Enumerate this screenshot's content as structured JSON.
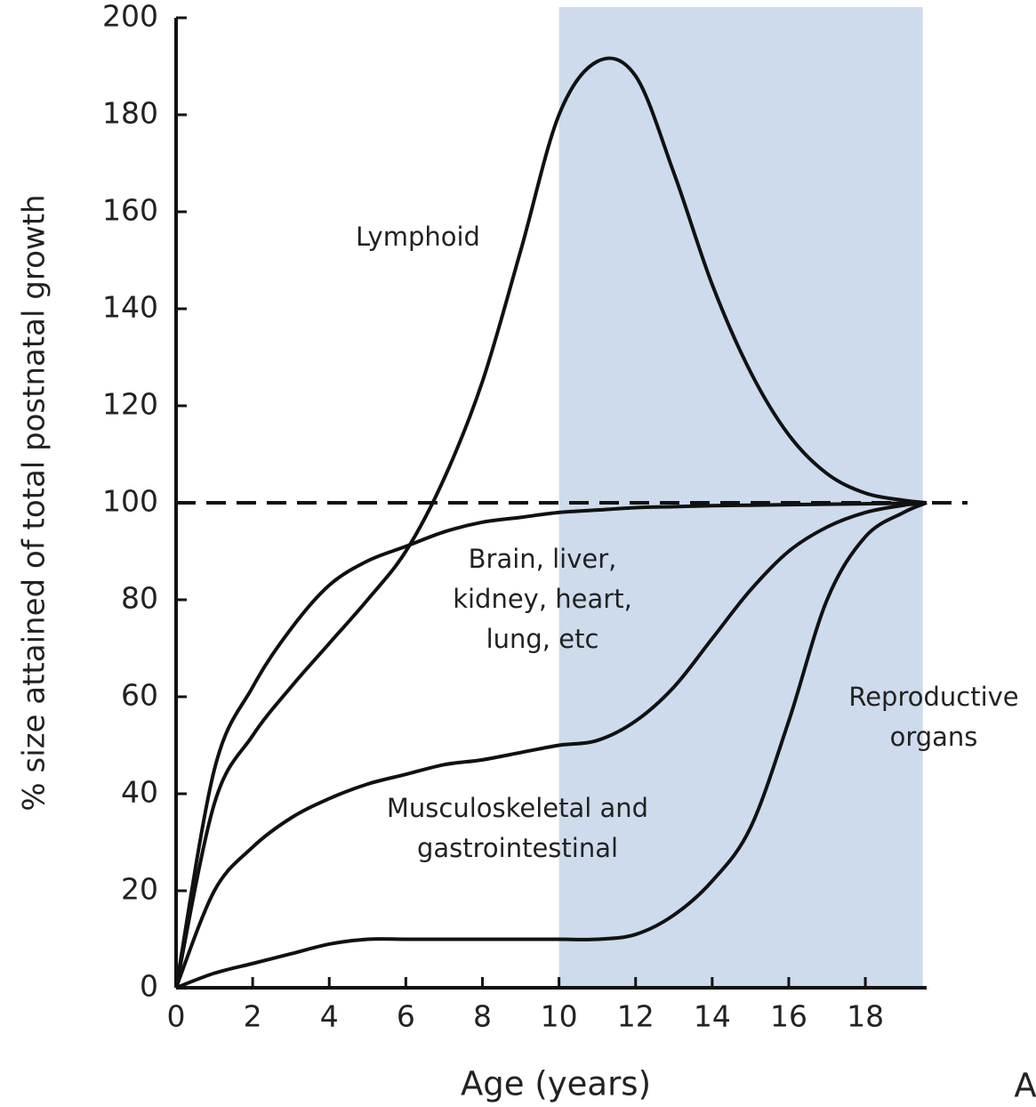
{
  "chart_data": {
    "type": "line",
    "x_label": "Age (years)",
    "y_label": "% size attained of total postnatal growth",
    "panel_label": "A",
    "x": [
      0,
      1,
      2,
      3,
      4,
      5,
      6,
      7,
      8,
      9,
      10,
      11,
      12,
      13,
      14,
      15,
      16,
      17,
      18,
      19,
      19.6
    ],
    "series": [
      {
        "name": "Lymphoid",
        "color": "#111111",
        "values": [
          0,
          38,
          52,
          62,
          71,
          80,
          90,
          105,
          125,
          152,
          180,
          191,
          188,
          168,
          145,
          127,
          114,
          106,
          102,
          100.5,
          100
        ]
      },
      {
        "name": "Brain, liver,\nkidney, heart,\nlung, etc",
        "color": "#111111",
        "values": [
          0,
          45,
          62,
          74,
          83,
          88,
          91,
          94,
          96,
          97,
          98,
          98.5,
          99,
          99.2,
          99.4,
          99.5,
          99.6,
          99.7,
          99.8,
          99.9,
          100
        ]
      },
      {
        "name": "Musculoskeletal and\ngastrointestinal",
        "color": "#111111",
        "values": [
          0,
          20,
          29,
          35,
          39,
          42,
          44,
          46,
          47,
          48.5,
          50,
          51,
          55,
          62,
          72,
          82,
          90,
          95,
          98,
          99.5,
          100
        ]
      },
      {
        "name": "Reproductive\norgans",
        "color": "#111111",
        "values": [
          0,
          3,
          5,
          7,
          9,
          10,
          10,
          10,
          10,
          10,
          10,
          10,
          11,
          15,
          22,
          33,
          55,
          80,
          93,
          98,
          100
        ]
      }
    ],
    "reference_line": 100,
    "shaded_x": [
      10,
      19.5
    ],
    "shade_color": "#cddbec",
    "xlim": [
      0,
      19.6
    ],
    "xticks": [
      0,
      2,
      4,
      6,
      8,
      10,
      12,
      14,
      16,
      18
    ],
    "ylim": [
      0,
      200
    ],
    "yticks": [
      0,
      20,
      40,
      60,
      80,
      100,
      120,
      140,
      160,
      180,
      200
    ]
  }
}
